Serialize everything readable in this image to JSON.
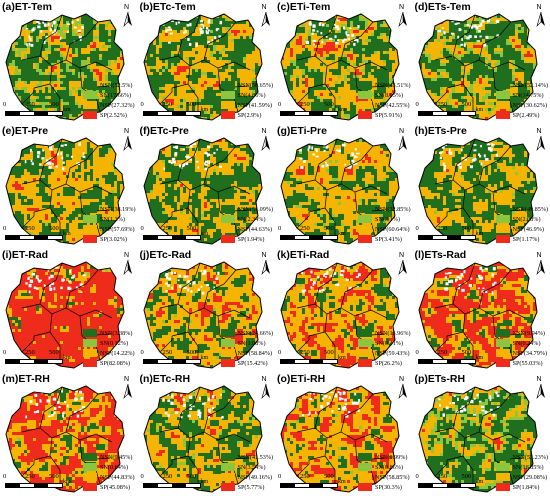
{
  "colors": {
    "NSN": "#1f6f1f",
    "SN": "#8cc63f",
    "NSP": "#f4b400",
    "SP": "#ef2b1b",
    "boundary": "#000000",
    "hole": "#ffffff"
  },
  "north_label": "N",
  "scale_ticks": [
    "0",
    "250",
    "500"
  ],
  "scale_unit": "km",
  "category_order": [
    "NSN",
    "SN",
    "NSP",
    "SP"
  ],
  "panels": [
    {
      "title": "(a)ET-Tem",
      "legend": [
        "NSN(52.5%)",
        "SN(17.66%)",
        "NSP(27.32%)",
        "SP(2.52%)"
      ]
    },
    {
      "title": "(b)ETc-Tem",
      "legend": [
        "NSN(50.65%)",
        "SN(4.86%)",
        "NSP(41.59%)",
        "SP(2.9%)"
      ]
    },
    {
      "title": "(c)ETi-Tem",
      "legend": [
        "NSN(43.51%)",
        "SN(8.05%)",
        "NSP(42.55%)",
        "SP(5.91%)"
      ]
    },
    {
      "title": "(d)ETs-Tem",
      "legend": [
        "NSN(52.14%)",
        "SN(14.75%)",
        "NSP(30.62%)",
        "SP(2.49%)"
      ]
    },
    {
      "title": "(e)ET-Pre",
      "legend": [
        "NSN(38.19%)",
        "SN(1.3%)",
        "NSP(57.69%)",
        "SP(3.02%)"
      ]
    },
    {
      "title": "(f)ETc-Pre",
      "legend": [
        "NSN(51.09%)",
        "SN(2.34%)",
        "NSP(44.63%)",
        "SP(1.94%)"
      ]
    },
    {
      "title": "(g)ETi-Pre",
      "legend": [
        "NSN(32.85%)",
        "SN(3.1%)",
        "NSP(60.64%)",
        "SP(3.41%)"
      ]
    },
    {
      "title": "(h)ETs-Pre",
      "legend": [
        "NSN(49.85%)",
        "SN(2.08%)",
        "NSP(46.9%)",
        "SP(1.17%)"
      ]
    },
    {
      "title": "(i)ET-Rad",
      "legend": [
        "NSN(3.38%)",
        "SN(0.32%)",
        "NSP(14.22%)",
        "SP(82.08%)"
      ]
    },
    {
      "title": "(j)ETc-Rad",
      "legend": [
        "NSN(24.66%)",
        "SN(1.08%)",
        "NSP(58.84%)",
        "SP(15.42%)"
      ]
    },
    {
      "title": "(k)ETi-Rad",
      "legend": [
        "NSN(13.96%)",
        "SN(0.41%)",
        "NSP(59.43%)",
        "SP(26.2%)"
      ]
    },
    {
      "title": "(l)ETs-Rad",
      "legend": [
        "NSN(9.94%)",
        "SN(0.24%)",
        "NSP(34.79%)",
        "SP(55.03%)"
      ]
    },
    {
      "title": "(m)ET-RH",
      "legend": [
        "NSN(9.45%)",
        "SN(0.64%)",
        "NSP(44.83%)",
        "SP(45.08%)"
      ]
    },
    {
      "title": "(n)ETc-RH",
      "legend": [
        "NSN(41.53%)",
        "SN(3.54%)",
        "NSP(49.16%)",
        "SP(5.77%)"
      ]
    },
    {
      "title": "(o)ETi-RH",
      "legend": [
        "NSN(9.99%)",
        "SN(0.86%)",
        "NSP(58.85%)",
        "SP(30.3%)"
      ]
    },
    {
      "title": "(p)ETs-RH",
      "legend": [
        "NSN(52.23%)",
        "SN(16.85%)",
        "NSP(29.08%)",
        "SP(1.84%)"
      ]
    }
  ]
}
